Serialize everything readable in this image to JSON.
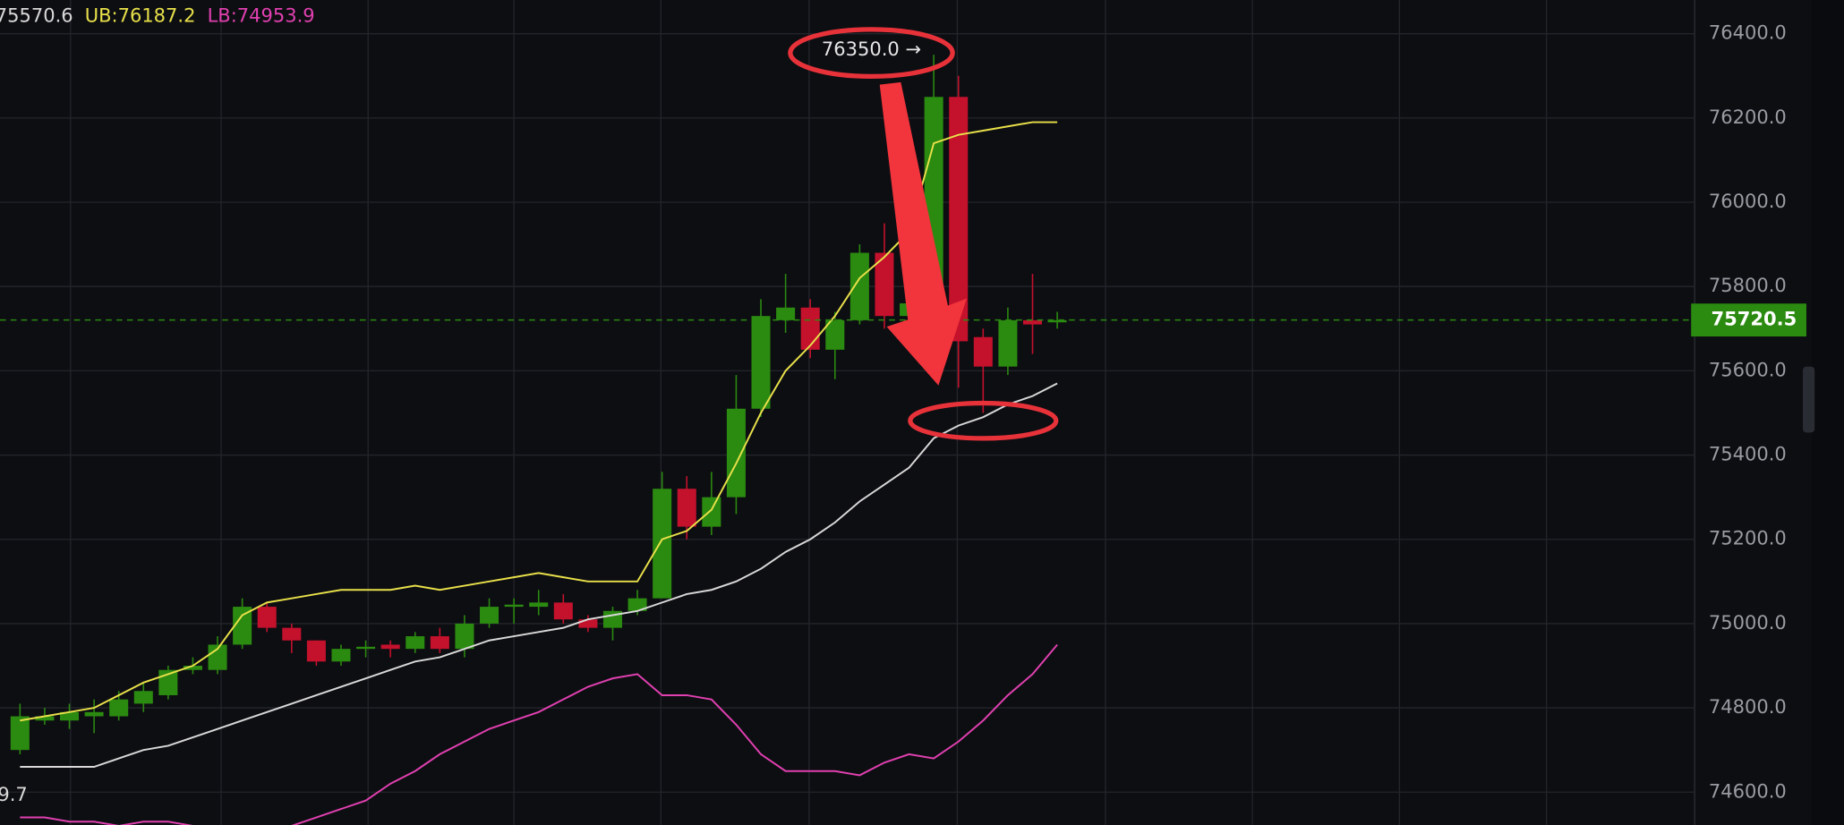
{
  "chart_data": {
    "type": "candlestick",
    "indicator_labels": [
      {
        "text": "75570.6",
        "color": "#d9d9d9"
      },
      {
        "text": "UB:76187.2",
        "color": "#e8e04a"
      },
      {
        "text": "LB:74953.9",
        "color": "#e040b0"
      }
    ],
    "lower_label": "9.7",
    "up_color": "#2b8a10",
    "down_color": "#c4112c",
    "open": [
      74700,
      74770,
      74770,
      74780,
      74780,
      74810,
      74830,
      74890,
      74890,
      74950,
      75040,
      74990,
      74960,
      74910,
      74940,
      74950,
      74940,
      74970,
      74940,
      75000,
      75040,
      75040,
      75050,
      75010,
      74990,
      75030,
      75060,
      75320,
      75230,
      75300,
      75510,
      75720,
      75750,
      75650,
      75720,
      75880,
      75730,
      75720,
      76250,
      75680,
      75610,
      75720,
      75715
    ],
    "high": [
      74810,
      74800,
      74810,
      74820,
      74840,
      74860,
      74900,
      74920,
      74970,
      75060,
      75050,
      75000,
      74960,
      74950,
      74960,
      74960,
      74980,
      74990,
      75020,
      75060,
      75060,
      75080,
      75070,
      75020,
      75040,
      75080,
      75360,
      75350,
      75360,
      75590,
      75770,
      75830,
      75770,
      75740,
      75900,
      75950,
      75800,
      76350,
      76300,
      75700,
      75750,
      75830,
      75740
    ],
    "low": [
      74690,
      74760,
      74750,
      74740,
      74770,
      74790,
      74820,
      74880,
      74880,
      74940,
      74980,
      74930,
      74900,
      74900,
      74920,
      74920,
      74930,
      74930,
      74920,
      74990,
      75000,
      75020,
      75000,
      74980,
      74960,
      75020,
      75060,
      75200,
      75210,
      75260,
      75490,
      75690,
      75630,
      75580,
      75710,
      75700,
      75720,
      75700,
      75560,
      75500,
      75590,
      75640,
      75700
    ],
    "close": [
      74780,
      74780,
      74790,
      74790,
      74820,
      74840,
      74890,
      74900,
      74950,
      75040,
      74990,
      74960,
      74910,
      74940,
      74945,
      74940,
      74970,
      74940,
      75000,
      75040,
      75045,
      75050,
      75010,
      74990,
      75030,
      75060,
      75320,
      75230,
      75300,
      75510,
      75730,
      75750,
      75650,
      75720,
      75880,
      75730,
      75760,
      76250,
      75670,
      75610,
      75720,
      75710,
      75720
    ],
    "series": [
      {
        "name": "UB",
        "color": "#e8e04a",
        "values": [
          74770,
          74780,
          74790,
          74800,
          74830,
          74860,
          74880,
          74900,
          74940,
          75020,
          75050,
          75060,
          75070,
          75080,
          75080,
          75080,
          75090,
          75080,
          75090,
          75100,
          75110,
          75120,
          75110,
          75100,
          75100,
          75100,
          75200,
          75220,
          75270,
          75380,
          75500,
          75600,
          75660,
          75730,
          75820,
          75870,
          75930,
          76140,
          76160,
          76170,
          76180,
          76190,
          76190
        ]
      },
      {
        "name": "MB",
        "color": "#d9d9d9",
        "values": [
          74660,
          74660,
          74660,
          74660,
          74680,
          74700,
          74710,
          74730,
          74750,
          74770,
          74790,
          74810,
          74830,
          74850,
          74870,
          74890,
          74910,
          74920,
          74940,
          74960,
          74970,
          74980,
          74990,
          75010,
          75020,
          75030,
          75050,
          75070,
          75080,
          75100,
          75130,
          75170,
          75200,
          75240,
          75290,
          75330,
          75370,
          75440,
          75470,
          75490,
          75520,
          75540,
          75570
        ]
      },
      {
        "name": "LB",
        "color": "#e040b0",
        "values": [
          74540,
          74540,
          74530,
          74530,
          74520,
          74530,
          74530,
          74520,
          74510,
          74500,
          74500,
          74520,
          74540,
          74560,
          74580,
          74620,
          74650,
          74690,
          74720,
          74750,
          74770,
          74790,
          74820,
          74850,
          74870,
          74880,
          74830,
          74830,
          74820,
          74760,
          74690,
          74650,
          74650,
          74650,
          74640,
          74670,
          74690,
          74680,
          74720,
          74770,
          74830,
          74880,
          74950
        ]
      }
    ],
    "ylim": [
      74522,
      76480
    ],
    "yticks": [
      {
        "value": 74600,
        "label": "74600.0"
      },
      {
        "value": 74800,
        "label": "74800.0"
      },
      {
        "value": 75000,
        "label": "75000.0"
      },
      {
        "value": 75200,
        "label": "75200.0"
      },
      {
        "value": 75400,
        "label": "75400.0"
      },
      {
        "value": 75600,
        "label": "75600.0"
      },
      {
        "value": 75800,
        "label": "75800.0"
      },
      {
        "value": 76000,
        "label": "76000.0"
      },
      {
        "value": 76200,
        "label": "76200.0"
      },
      {
        "value": 76400,
        "label": "76400.0"
      }
    ],
    "grid": true,
    "last_price": {
      "value": 75720.5,
      "label": "75720.5"
    },
    "max_annotation": {
      "value": 76350,
      "label": "76350.0 →"
    }
  }
}
